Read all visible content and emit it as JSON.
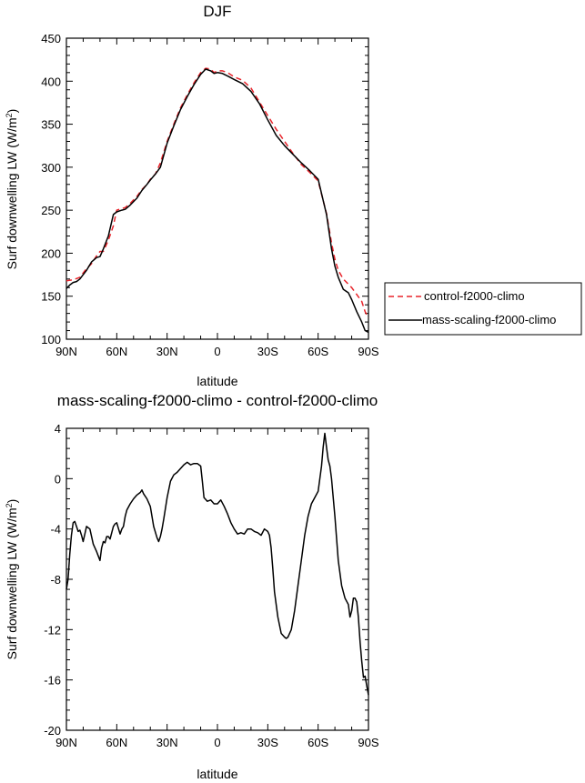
{
  "chart_data": [
    {
      "type": "line",
      "title": "DJF",
      "xlabel": "latitude",
      "ylabel": "Surf downwelling LW (W/m²)",
      "ylabel_main": "Surf downwelling LW (W/m",
      "ylabel_sup": "2",
      "ylabel_close": ")",
      "xlim": [
        -90,
        90
      ],
      "ylim": [
        100,
        450
      ],
      "xticks": [
        -90,
        -60,
        -30,
        0,
        30,
        60,
        90
      ],
      "xtick_labels": [
        "90N",
        "60N",
        "30N",
        "0",
        "30S",
        "60S",
        "90S"
      ],
      "yticks": [
        100,
        150,
        200,
        250,
        300,
        350,
        400,
        450
      ],
      "ytick_labels": [
        "100",
        "150",
        "200",
        "250",
        "300",
        "350",
        "400",
        "450"
      ],
      "legend_position": "right",
      "series": [
        {
          "name": "control-f2000-climo",
          "color": "#e8232a",
          "dash": "dashed",
          "x": [
            -90,
            -86,
            -82,
            -78,
            -75,
            -72,
            -70,
            -68,
            -65,
            -62,
            -60,
            -57,
            -55,
            -52,
            -48,
            -45,
            -42,
            -40,
            -37,
            -34,
            -30,
            -26,
            -22,
            -18,
            -14,
            -10,
            -7,
            -4,
            -2,
            0,
            3,
            6,
            10,
            15,
            20,
            25,
            30,
            35,
            40,
            45,
            50,
            55,
            60,
            65,
            68,
            70,
            72,
            75,
            78,
            80,
            83,
            86,
            88,
            90
          ],
          "y": [
            168,
            169,
            172,
            182,
            188,
            197,
            202,
            202,
            215,
            232,
            250,
            252,
            253,
            258,
            266,
            274,
            280,
            286,
            292,
            305,
            330,
            350,
            369,
            384,
            398,
            410,
            415,
            414,
            410,
            412,
            412,
            410,
            405,
            401,
            392,
            376,
            360,
            344,
            330,
            316,
            303,
            294,
            284,
            246,
            212,
            193,
            180,
            170,
            164,
            160,
            152,
            144,
            132,
            125
          ]
        },
        {
          "name": "mass-scaling-f2000-climo",
          "color": "#000000",
          "dash": "solid",
          "x": [
            -90,
            -88,
            -86,
            -84,
            -82,
            -80,
            -78,
            -75,
            -72,
            -70,
            -68,
            -65,
            -62,
            -60,
            -57,
            -55,
            -52,
            -48,
            -45,
            -42,
            -40,
            -37,
            -34,
            -30,
            -26,
            -22,
            -18,
            -14,
            -10,
            -7,
            -4,
            -2,
            0,
            3,
            6,
            10,
            15,
            20,
            25,
            30,
            35,
            40,
            45,
            50,
            55,
            60,
            65,
            68,
            70,
            72,
            75,
            78,
            80,
            83,
            86,
            88,
            90
          ],
          "y": [
            159,
            163,
            166,
            167,
            170,
            175,
            180,
            190,
            195,
            196,
            205,
            220,
            245,
            248,
            250,
            251,
            256,
            264,
            273,
            280,
            285,
            292,
            300,
            328,
            348,
            367,
            382,
            396,
            408,
            414,
            412,
            409,
            410,
            409,
            406,
            402,
            397,
            388,
            374,
            355,
            337,
            325,
            315,
            305,
            296,
            286,
            245,
            205,
            185,
            172,
            158,
            154,
            146,
            132,
            120,
            110,
            108
          ]
        }
      ]
    },
    {
      "type": "line",
      "title": "mass-scaling-f2000-climo - control-f2000-climo",
      "xlabel": "latitude",
      "ylabel": "Surf downwelling LW (W/m²)",
      "ylabel_main": "Surf downwelling LW (W/m",
      "ylabel_sup": "2",
      "ylabel_close": ")",
      "xlim": [
        -90,
        90
      ],
      "ylim": [
        -20,
        4
      ],
      "xticks": [
        -90,
        -60,
        -30,
        0,
        30,
        60,
        90
      ],
      "xtick_labels": [
        "90N",
        "60N",
        "30N",
        "0",
        "30S",
        "60S",
        "90S"
      ],
      "yticks": [
        -20,
        -16,
        -12,
        -8,
        -4,
        0,
        4
      ],
      "ytick_labels": [
        "-20",
        "-16",
        "-12",
        "-8",
        "-4",
        "0",
        "4"
      ],
      "series": [
        {
          "color": "#000000",
          "dash": "solid",
          "x": [
            -90,
            -89,
            -88,
            -87,
            -86,
            -85,
            -84,
            -83,
            -82,
            -81,
            -80,
            -78,
            -76,
            -74,
            -72,
            -70,
            -69,
            -68,
            -67,
            -66,
            -65,
            -64,
            -63,
            -62,
            -61,
            -60,
            -58,
            -57,
            -56,
            -55,
            -54,
            -52,
            -50,
            -48,
            -46,
            -45,
            -44,
            -42,
            -40,
            -38,
            -36,
            -35,
            -34,
            -33,
            -32,
            -30,
            -28,
            -26,
            -24,
            -22,
            -20,
            -18,
            -16,
            -14,
            -12,
            -10,
            -9,
            -8,
            -6,
            -4,
            -2,
            0,
            2,
            4,
            6,
            8,
            10,
            12,
            14,
            16,
            18,
            20,
            22,
            24,
            26,
            28,
            30,
            31,
            32,
            33,
            34,
            36,
            38,
            40,
            41,
            42,
            44,
            46,
            48,
            50,
            52,
            54,
            56,
            58,
            60,
            62,
            63,
            64,
            65,
            66,
            67,
            68,
            70,
            72,
            74,
            76,
            78,
            79,
            80,
            81,
            82,
            83,
            84,
            85,
            86,
            87,
            88,
            89,
            90
          ],
          "y": [
            -8.8,
            -8.0,
            -6.0,
            -4.5,
            -3.5,
            -3.4,
            -3.8,
            -4.2,
            -4.1,
            -4.5,
            -5.0,
            -3.8,
            -4.0,
            -5.2,
            -5.8,
            -6.5,
            -5.5,
            -5.0,
            -5.1,
            -4.6,
            -4.6,
            -4.8,
            -4.3,
            -3.8,
            -3.6,
            -3.5,
            -4.4,
            -4.0,
            -3.8,
            -3.0,
            -2.5,
            -2.0,
            -1.6,
            -1.3,
            -1.1,
            -0.9,
            -1.2,
            -1.6,
            -2.2,
            -3.8,
            -4.7,
            -5.0,
            -4.6,
            -4.0,
            -3.2,
            -1.5,
            -0.2,
            0.3,
            0.5,
            0.8,
            1.1,
            1.3,
            1.1,
            1.2,
            1.2,
            1.0,
            -0.2,
            -1.5,
            -1.8,
            -1.7,
            -2.0,
            -2.0,
            -1.7,
            -2.2,
            -2.8,
            -3.5,
            -4.0,
            -4.4,
            -4.3,
            -4.4,
            -4.0,
            -4.0,
            -4.2,
            -4.3,
            -4.5,
            -4.0,
            -4.2,
            -4.5,
            -5.5,
            -7.2,
            -9.0,
            -11.0,
            -12.3,
            -12.6,
            -12.7,
            -12.6,
            -12.0,
            -10.5,
            -8.5,
            -6.5,
            -4.5,
            -3.0,
            -2.0,
            -1.5,
            -1.0,
            1.0,
            2.5,
            3.6,
            2.5,
            1.5,
            1.0,
            0.0,
            -3.0,
            -6.5,
            -8.5,
            -9.5,
            -10.0,
            -11.0,
            -10.5,
            -9.5,
            -9.5,
            -9.8,
            -11.0,
            -13.0,
            -14.5,
            -15.8,
            -15.7,
            -16.5,
            -17.2
          ]
        }
      ]
    }
  ]
}
